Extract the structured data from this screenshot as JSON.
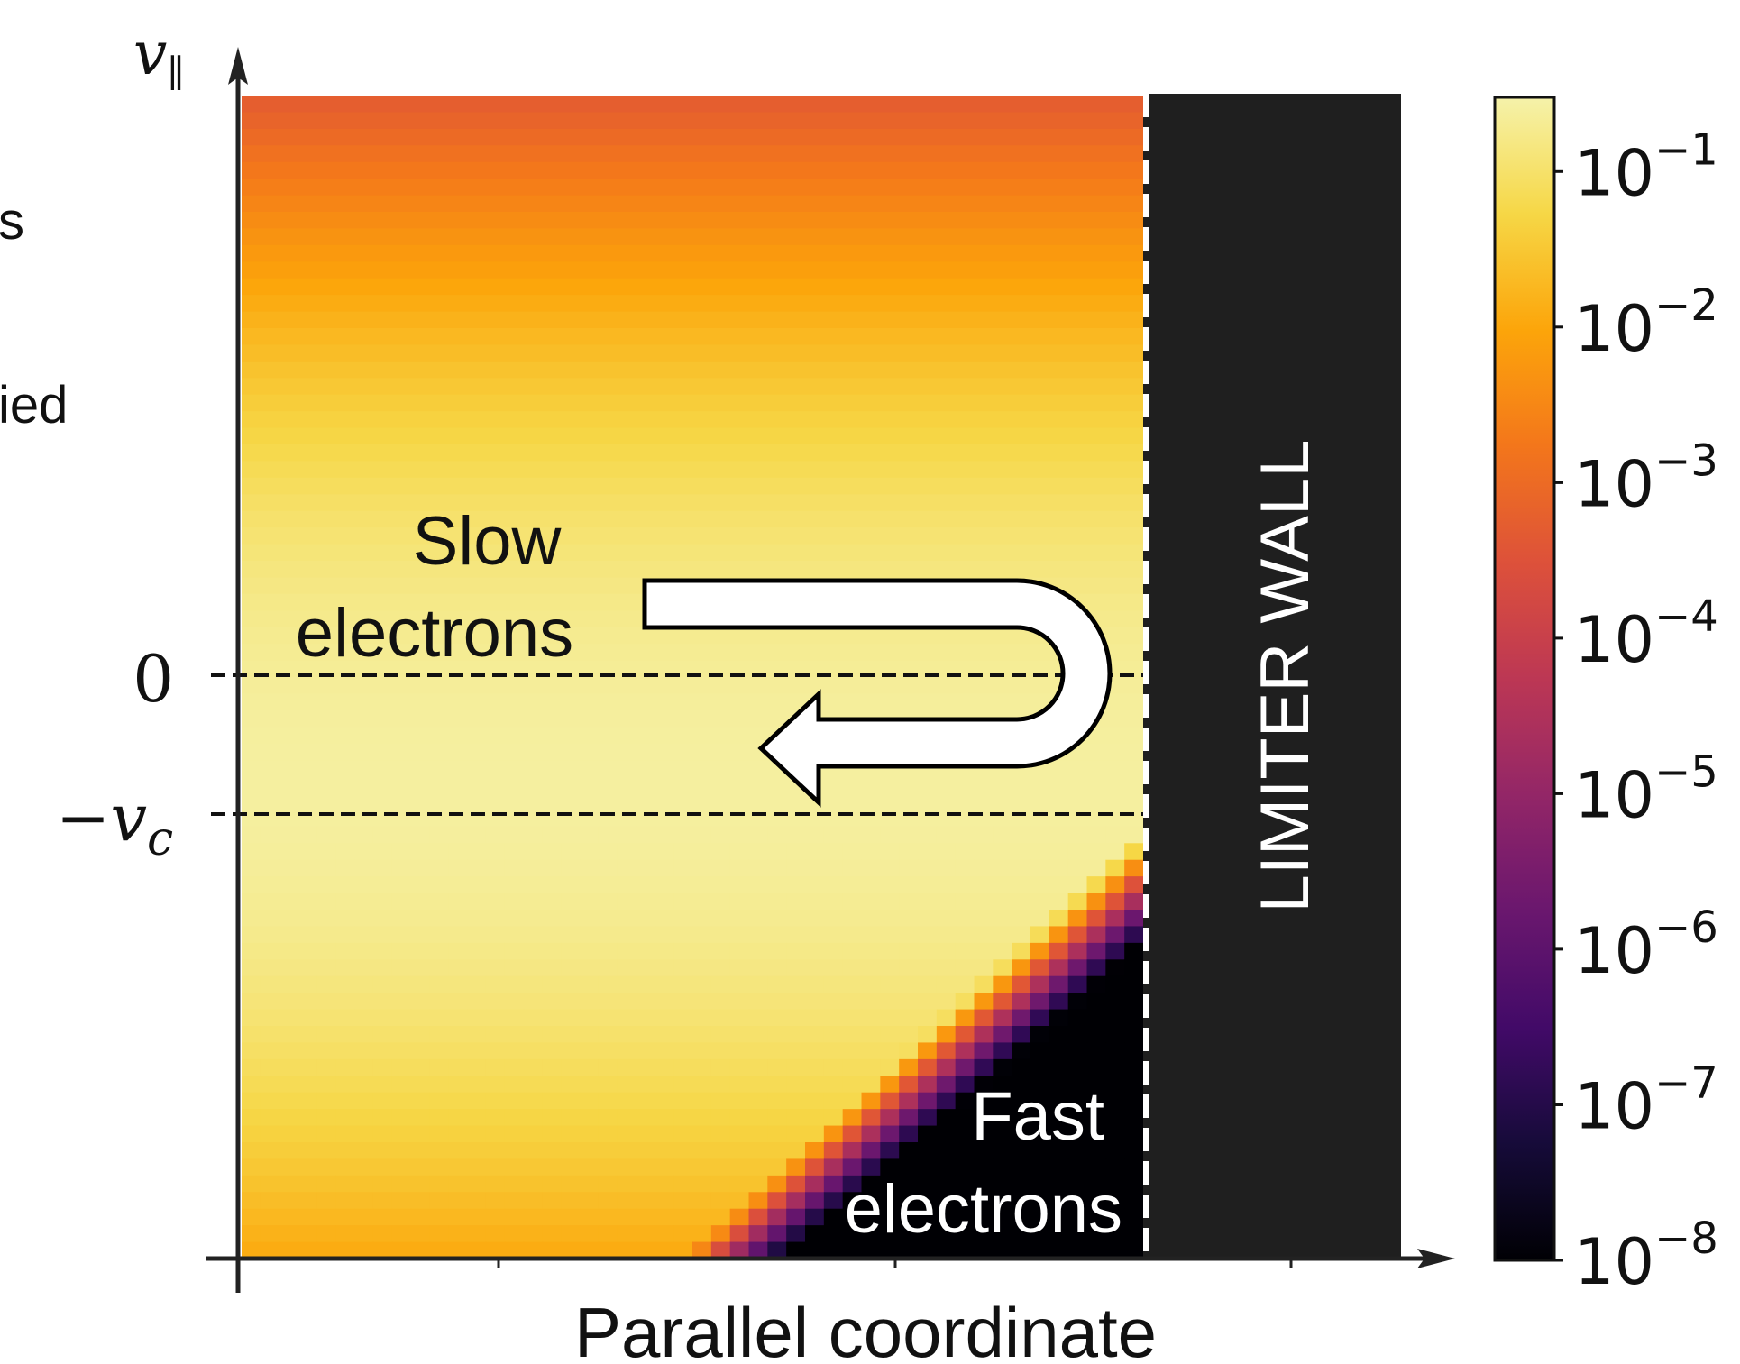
{
  "page_fragments": [
    "s",
    "ied"
  ],
  "chart_data": {
    "type": "heatmap",
    "title": "",
    "xlabel": "Parallel coordinate",
    "ylabel_symbol": "v",
    "ylabel_subscript": "∥",
    "y_ticks": [
      {
        "label": "0",
        "value": 0
      },
      {
        "label_prefix": "−v",
        "label_subscript": "c",
        "value": -1
      }
    ],
    "y_range": [
      -4.0,
      4.2
    ],
    "x_range": [
      0,
      1
    ],
    "wall_position_x": 0.785,
    "wall_label": "LIMITER WALL",
    "annotations": {
      "slow": [
        "Slow",
        "electrons"
      ],
      "fast": [
        "Fast",
        "electrons"
      ]
    },
    "colorbar": {
      "scale": "log",
      "range": [
        1e-08,
        0.3
      ],
      "tick_base": "10",
      "tick_exponents": [
        "−1",
        "−2",
        "−3",
        "−4",
        "−5",
        "−6",
        "−7",
        "−8"
      ],
      "tick_values": [
        0.1,
        0.01,
        0.001,
        0.0001,
        1e-05,
        1e-06,
        1e-07,
        1e-08
      ]
    },
    "colormap": "inferno",
    "colors": {
      "wall": "#1f1f1f",
      "annotation_dark": "#111111",
      "annotation_light": "#ffffff"
    }
  }
}
